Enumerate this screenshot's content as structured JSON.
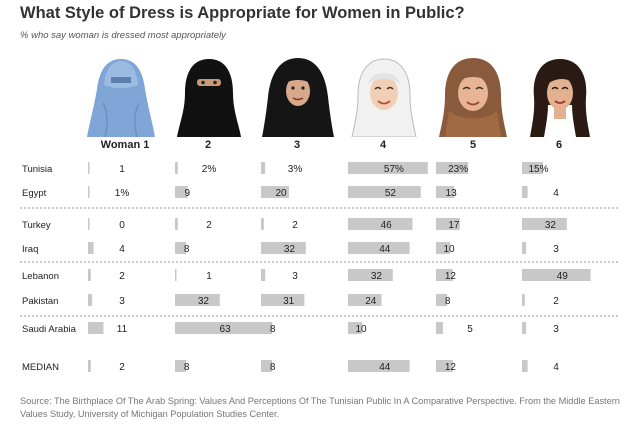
{
  "title": "What Style of Dress is Appropriate for Women in Public?",
  "subtitle": "% who say woman is dressed most appropriately",
  "figures": [
    {
      "label": "Woman 1",
      "icon": "burqa-woman-icon"
    },
    {
      "label": "2",
      "icon": "niqab-woman-icon"
    },
    {
      "label": "3",
      "icon": "chador-woman-icon"
    },
    {
      "label": "4",
      "icon": "hijab-white-woman-icon"
    },
    {
      "label": "5",
      "icon": "hijab-brown-woman-icon"
    },
    {
      "label": "6",
      "icon": "uncovered-woman-icon"
    }
  ],
  "colors": {
    "bar": "#c8c8c8",
    "separator": "#9a9a9a",
    "text": "#222222"
  },
  "chart_data": {
    "type": "bar",
    "title": "What Style of Dress is Appropriate for Women in Public?",
    "subtitle": "% who say woman is dressed most appropriately",
    "categories": [
      "Woman 1",
      "2",
      "3",
      "4",
      "5",
      "6"
    ],
    "rows": [
      {
        "name": "Tunisia",
        "values": [
          1,
          2,
          3,
          57,
          23,
          15
        ],
        "labels": [
          "1",
          "2%",
          "3%",
          "57%",
          "23%",
          "15%"
        ]
      },
      {
        "name": "Egypt",
        "values": [
          1,
          9,
          20,
          52,
          13,
          4
        ],
        "labels": [
          "1%",
          "9",
          "20",
          "52",
          "13",
          "4"
        ]
      },
      {
        "name": "Turkey",
        "values": [
          0,
          2,
          2,
          46,
          17,
          32
        ],
        "labels": [
          "0",
          "2",
          "2",
          "46",
          "17",
          "32"
        ]
      },
      {
        "name": "Iraq",
        "values": [
          4,
          8,
          32,
          44,
          10,
          3
        ],
        "labels": [
          "4",
          "8",
          "32",
          "44",
          "10",
          "3"
        ]
      },
      {
        "name": "Lebanon",
        "values": [
          2,
          1,
          3,
          32,
          12,
          49
        ],
        "labels": [
          "2",
          "1",
          "3",
          "32",
          "12",
          "49"
        ]
      },
      {
        "name": "Pakistan",
        "values": [
          3,
          32,
          31,
          24,
          8,
          2
        ],
        "labels": [
          "3",
          "32",
          "31",
          "24",
          "8",
          "2"
        ]
      },
      {
        "name": "Saudi Arabia",
        "values": [
          11,
          63,
          8,
          10,
          5,
          3
        ],
        "labels": [
          "11",
          "63",
          "8",
          "10",
          "5",
          "3"
        ]
      },
      {
        "name": "MEDIAN",
        "values": [
          2,
          8,
          8,
          44,
          12,
          4
        ],
        "labels": [
          "2",
          "8",
          "8",
          "44",
          "12",
          "4"
        ]
      }
    ],
    "separators_after": [
      "Egypt",
      "Iraq",
      "Pakistan"
    ]
  },
  "source": "Source: The Birthplace Of The Arab Spring: Values And Perceptions Of The Tunisian Public In A Comparative Perspective. From the Middle Eastern Values Study, University of Michigan Population Studies Center."
}
